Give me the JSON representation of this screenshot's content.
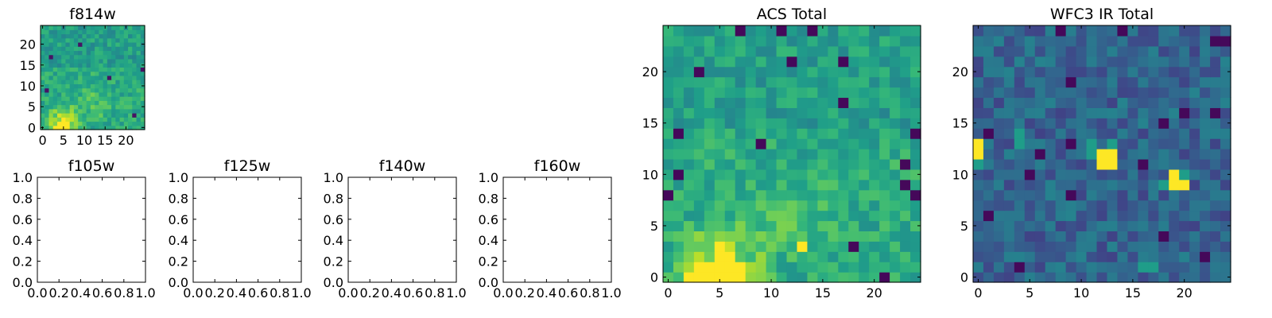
{
  "colormap": {
    "name": "viridis",
    "stops": [
      "#440154",
      "#482878",
      "#3e4989",
      "#31688e",
      "#26828e",
      "#1f9e89",
      "#35b779",
      "#6ece58",
      "#b5de2b",
      "#fde725"
    ]
  },
  "chart_data": [
    {
      "id": "f814w",
      "type": "heatmap",
      "title": "f814w",
      "grid_size": 25,
      "xlim": [
        -0.5,
        24.5
      ],
      "ylim": [
        -0.5,
        24.5
      ],
      "xticks": [
        0,
        5,
        10,
        15,
        20
      ],
      "yticks": [
        0,
        5,
        10,
        15,
        20
      ],
      "grid": false,
      "note": "pixel image; brightest source at bottom-left (x≈5, y≈1)"
    },
    {
      "id": "f105w",
      "type": "empty",
      "title": "f105w",
      "xlim": [
        0,
        1
      ],
      "ylim": [
        0,
        1
      ],
      "xticks": [
        "0.0",
        "0.2",
        "0.4",
        "0.6",
        "0.8",
        "1.0"
      ],
      "yticks": [
        "0.0",
        "0.2",
        "0.4",
        "0.6",
        "0.8",
        "1.0"
      ]
    },
    {
      "id": "f125w",
      "type": "empty",
      "title": "f125w",
      "xlim": [
        0,
        1
      ],
      "ylim": [
        0,
        1
      ],
      "xticks": [
        "0.0",
        "0.2",
        "0.4",
        "0.6",
        "0.8",
        "1.0"
      ],
      "yticks": [
        "0.0",
        "0.2",
        "0.4",
        "0.6",
        "0.8",
        "1.0"
      ]
    },
    {
      "id": "f140w",
      "type": "empty",
      "title": "f140w",
      "xlim": [
        0,
        1
      ],
      "ylim": [
        0,
        1
      ],
      "xticks": [
        "0.0",
        "0.2",
        "0.4",
        "0.6",
        "0.8",
        "1.0"
      ],
      "yticks": [
        "0.0",
        "0.2",
        "0.4",
        "0.6",
        "0.8",
        "1.0"
      ]
    },
    {
      "id": "f160w",
      "type": "empty",
      "title": "f160w",
      "xlim": [
        0,
        1
      ],
      "ylim": [
        0,
        1
      ],
      "xticks": [
        "0.0",
        "0.2",
        "0.4",
        "0.6",
        "0.8",
        "1.0"
      ],
      "yticks": [
        "0.0",
        "0.2",
        "0.4",
        "0.6",
        "0.8",
        "1.0"
      ]
    },
    {
      "id": "acs_total",
      "type": "heatmap",
      "title": "ACS Total",
      "grid_size": 25,
      "xlim": [
        -0.5,
        24.5
      ],
      "ylim": [
        -0.5,
        24.5
      ],
      "xticks": [
        0,
        5,
        10,
        15,
        20
      ],
      "yticks": [
        0,
        5,
        10,
        15,
        20
      ],
      "grid": false,
      "bright_pixels": [
        [
          2,
          0
        ],
        [
          3,
          0
        ],
        [
          4,
          0
        ],
        [
          5,
          0
        ],
        [
          6,
          0
        ],
        [
          7,
          0
        ],
        [
          3,
          1
        ],
        [
          4,
          1
        ],
        [
          5,
          1
        ],
        [
          6,
          1
        ],
        [
          7,
          1
        ],
        [
          5,
          2
        ],
        [
          6,
          2
        ],
        [
          5,
          3
        ],
        [
          13,
          3
        ]
      ],
      "dark_pixels": [
        [
          7,
          24
        ],
        [
          11,
          24
        ],
        [
          14,
          24
        ],
        [
          3,
          20
        ],
        [
          12,
          21
        ],
        [
          17,
          21
        ],
        [
          17,
          17
        ],
        [
          1,
          14
        ],
        [
          24,
          14
        ],
        [
          9,
          13
        ],
        [
          23,
          11
        ],
        [
          1,
          10
        ],
        [
          23,
          9
        ],
        [
          0,
          8
        ],
        [
          24,
          8
        ],
        [
          18,
          3
        ],
        [
          21,
          0
        ]
      ]
    },
    {
      "id": "wfc3_ir_total",
      "type": "heatmap",
      "title": "WFC3 IR Total",
      "grid_size": 25,
      "xlim": [
        -0.5,
        24.5
      ],
      "ylim": [
        -0.5,
        24.5
      ],
      "xticks": [
        0,
        5,
        10,
        15,
        20
      ],
      "yticks": [
        0,
        5,
        10,
        15,
        20
      ],
      "grid": false,
      "bright_pixels": [
        [
          0,
          12
        ],
        [
          0,
          13
        ],
        [
          12,
          12
        ],
        [
          13,
          12
        ],
        [
          12,
          11
        ],
        [
          13,
          11
        ],
        [
          19,
          10
        ],
        [
          19,
          9
        ],
        [
          20,
          9
        ]
      ],
      "medium_pixels": [
        [
          0,
          11
        ],
        [
          4,
          14
        ],
        [
          4,
          13
        ],
        [
          11,
          12
        ],
        [
          11,
          13
        ],
        [
          13,
          13
        ],
        [
          16,
          1
        ],
        [
          17,
          1
        ],
        [
          20,
          10
        ],
        [
          18,
          9
        ]
      ],
      "dark_pixels": [
        [
          8,
          24
        ],
        [
          14,
          24
        ],
        [
          23,
          23
        ],
        [
          24,
          23
        ],
        [
          9,
          19
        ],
        [
          23,
          16
        ],
        [
          20,
          16
        ],
        [
          18,
          15
        ],
        [
          1,
          14
        ],
        [
          9,
          13
        ],
        [
          6,
          12
        ],
        [
          16,
          11
        ],
        [
          5,
          10
        ],
        [
          9,
          8
        ],
        [
          1,
          6
        ],
        [
          18,
          4
        ],
        [
          22,
          2
        ],
        [
          4,
          1
        ]
      ]
    }
  ]
}
